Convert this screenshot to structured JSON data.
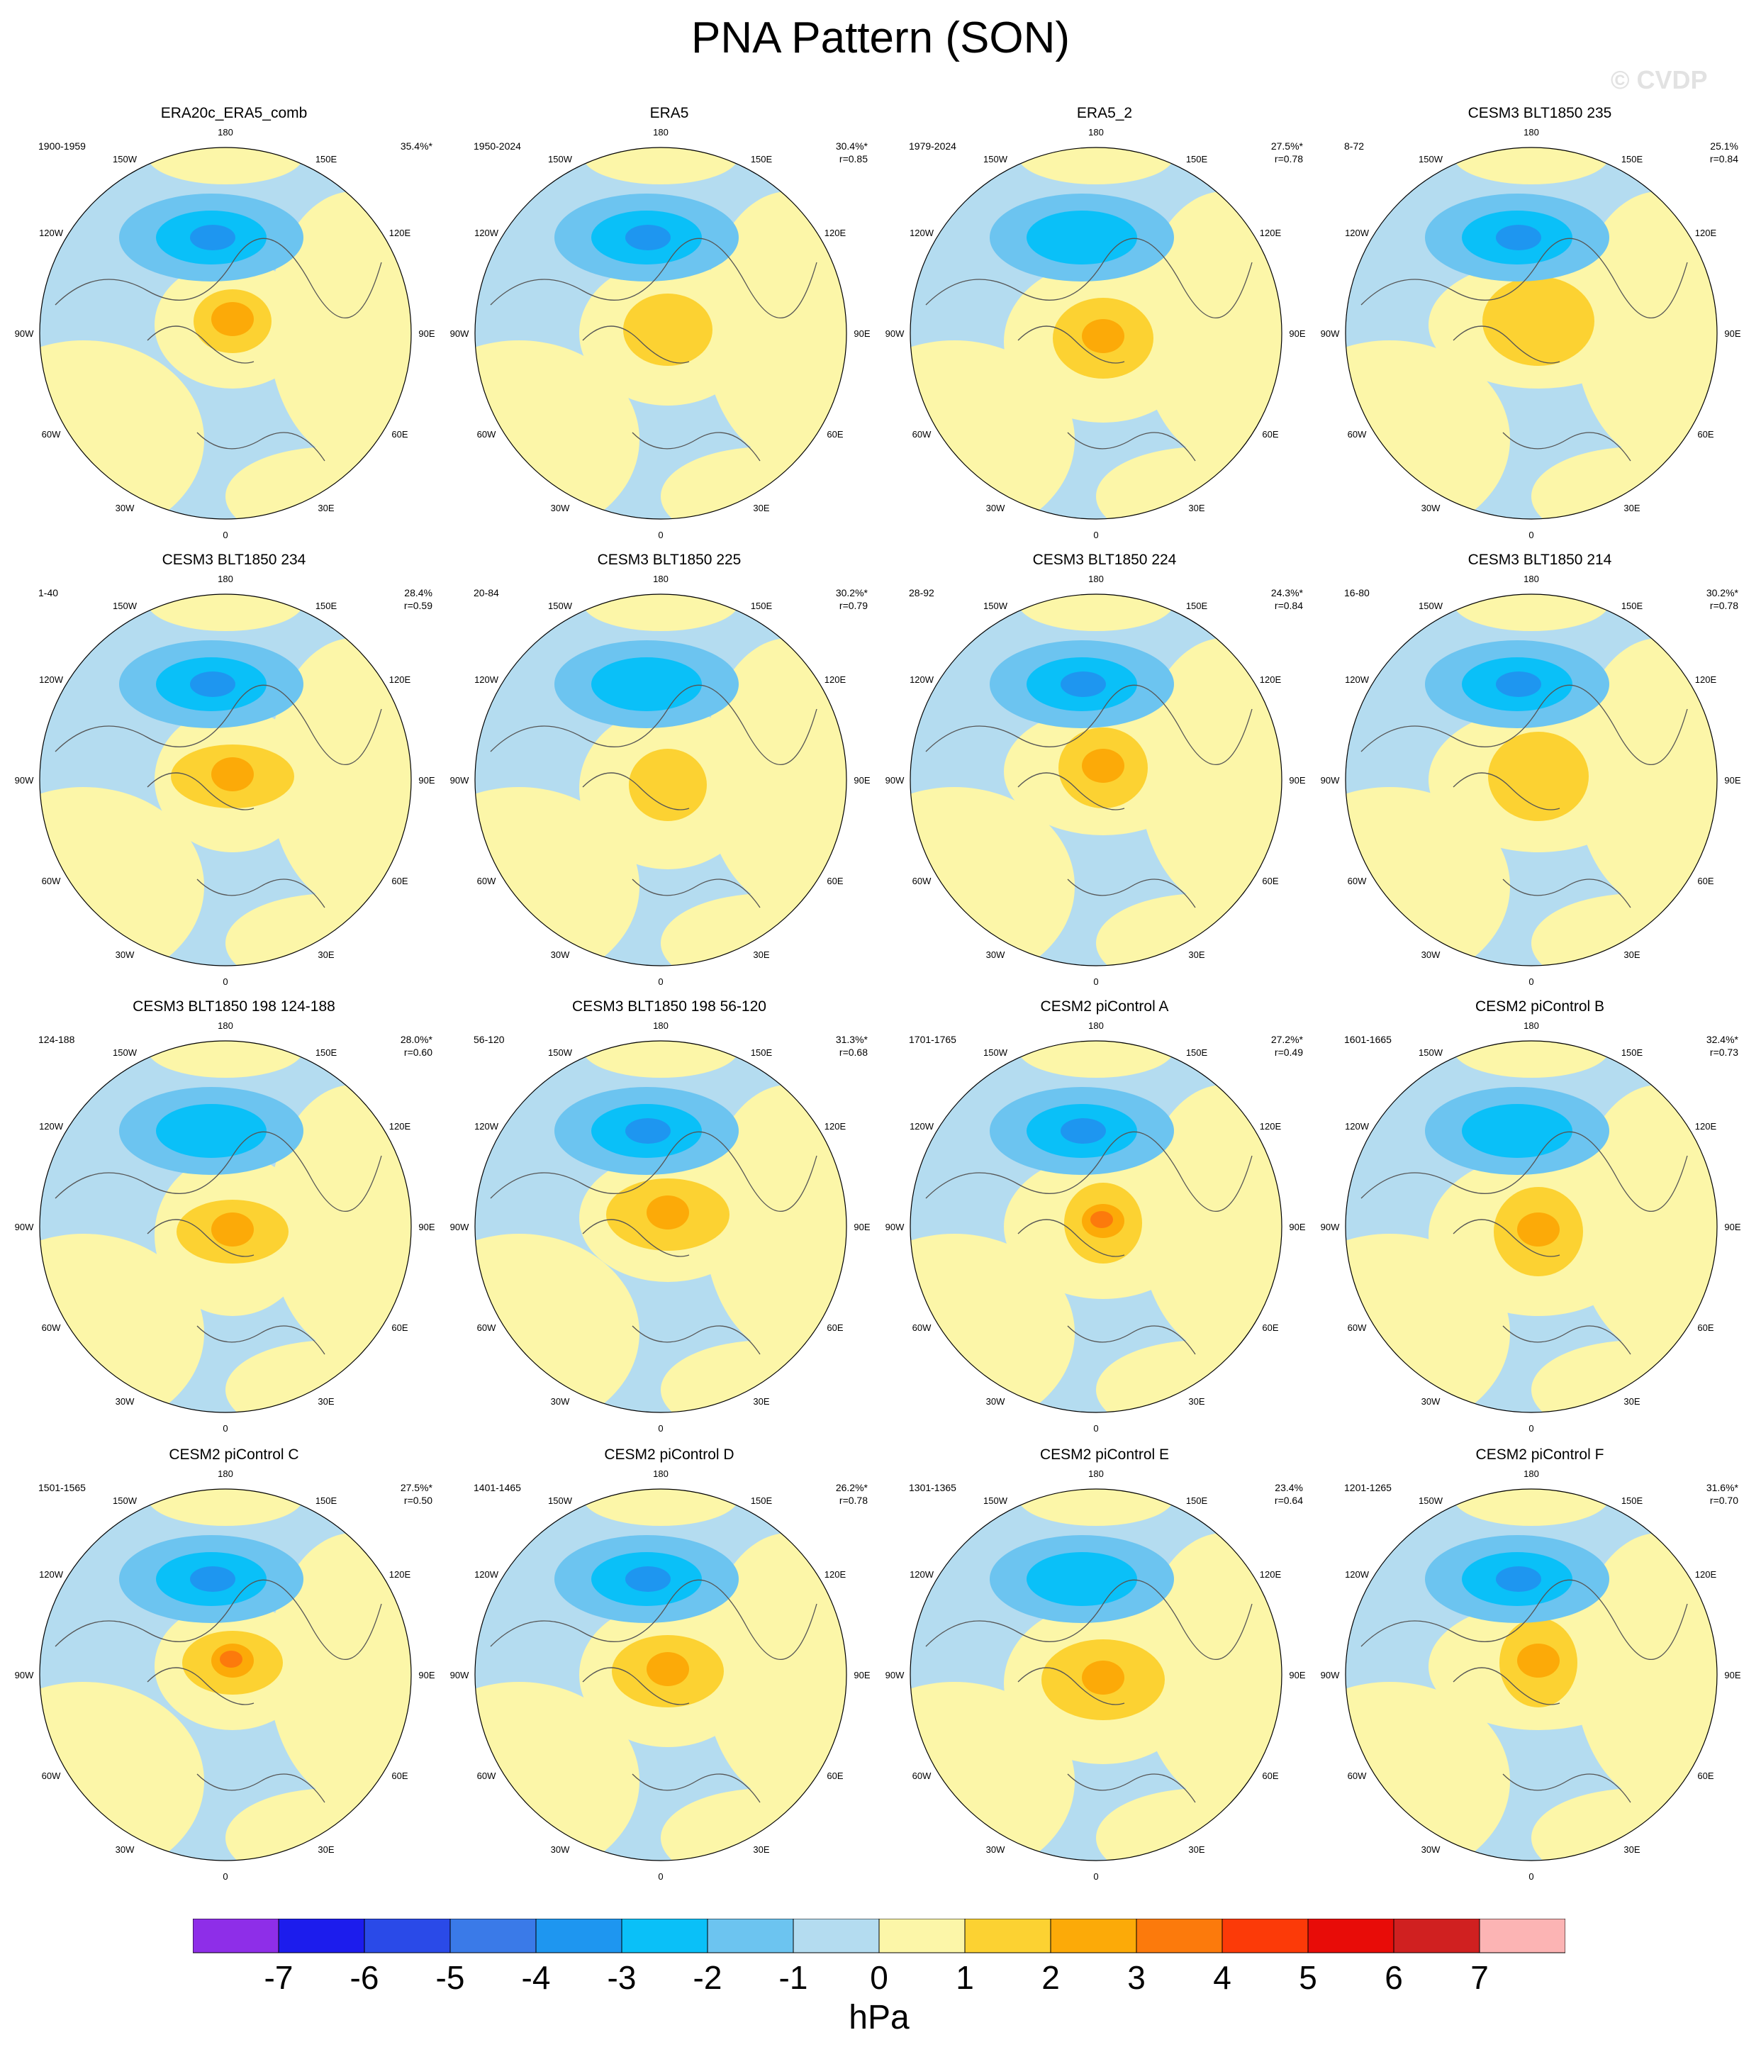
{
  "title": "PNA Pattern (SON)",
  "watermark": "© CVDP",
  "colorbar": {
    "units": "hPa",
    "labels": [
      "-7",
      "-6",
      "-5",
      "-4",
      "-3",
      "-2",
      "-1",
      "0",
      "1",
      "2",
      "3",
      "4",
      "5",
      "6",
      "7"
    ],
    "colors": [
      "#8e2ee8",
      "#1c1ced",
      "#2a4ae8",
      "#3a7ae8",
      "#1e96f0",
      "#0ac0f8",
      "#6cc4f0",
      "#b4dcf0",
      "#fcf6a8",
      "#fcd232",
      "#fcaa08",
      "#fc7a0c",
      "#fc3a08",
      "#e80c08",
      "#d02020",
      "#fcb4b4"
    ]
  },
  "panels": [
    {
      "title": "ERA20c_ERA5_comb",
      "period": "1900-1959",
      "pct": "35.4%*",
      "r": ""
    },
    {
      "title": "ERA5",
      "period": "1950-2024",
      "pct": "30.4%*",
      "r": "r=0.85"
    },
    {
      "title": "ERA5_2",
      "period": "1979-2024",
      "pct": "27.5%*",
      "r": "r=0.78"
    },
    {
      "title": "CESM3 BLT1850 235",
      "period": "8-72",
      "pct": "25.1%",
      "r": "r=0.84"
    },
    {
      "title": "CESM3 BLT1850 234",
      "period": "1-40",
      "pct": "28.4%",
      "r": "r=0.59"
    },
    {
      "title": "CESM3 BLT1850 225",
      "period": "20-84",
      "pct": "30.2%*",
      "r": "r=0.79"
    },
    {
      "title": "CESM3 BLT1850 224",
      "period": "28-92",
      "pct": "24.3%*",
      "r": "r=0.84"
    },
    {
      "title": "CESM3 BLT1850 214",
      "period": "16-80",
      "pct": "30.2%*",
      "r": "r=0.78"
    },
    {
      "title": "CESM3 BLT1850 198 124-188",
      "period": "124-188",
      "pct": "28.0%*",
      "r": "r=0.60"
    },
    {
      "title": "CESM3 BLT1850 198 56-120",
      "period": "56-120",
      "pct": "31.3%*",
      "r": "r=0.68"
    },
    {
      "title": "CESM2 piControl A",
      "period": "1701-1765",
      "pct": "27.2%*",
      "r": "r=0.49"
    },
    {
      "title": "CESM2 piControl B",
      "period": "1601-1665",
      "pct": "32.4%*",
      "r": "r=0.73"
    },
    {
      "title": "CESM2 piControl C",
      "period": "1501-1565",
      "pct": "27.5%*",
      "r": "r=0.50"
    },
    {
      "title": "CESM2 piControl D",
      "period": "1401-1465",
      "pct": "26.2%*",
      "r": "r=0.78"
    },
    {
      "title": "CESM2 piControl E",
      "period": "1301-1365",
      "pct": "23.4%",
      "r": "r=0.64"
    },
    {
      "title": "CESM2 piControl F",
      "period": "1201-1265",
      "pct": "31.6%*",
      "r": "r=0.70"
    }
  ],
  "lon_labels": [
    "180",
    "150E",
    "120E",
    "90E",
    "60E",
    "30E",
    "0",
    "30W",
    "60W",
    "90W",
    "120W",
    "150W"
  ]
}
